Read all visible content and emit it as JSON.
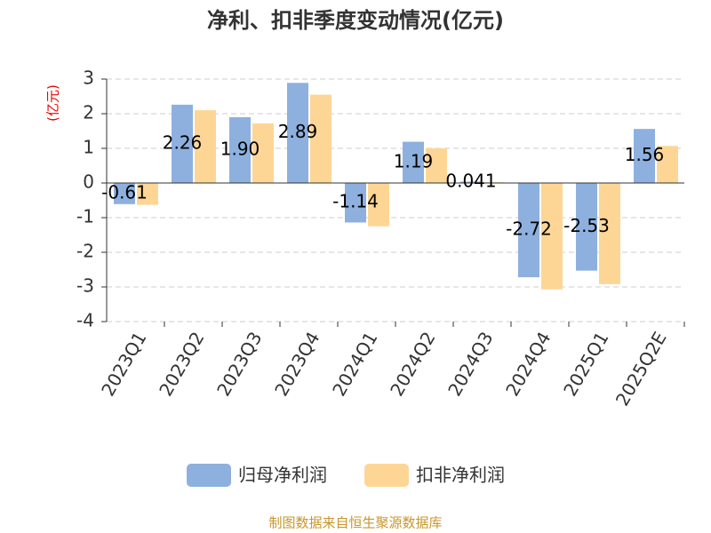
{
  "chart_data": {
    "type": "bar",
    "title": "净利、扣非季度变动情况(亿元)",
    "y_label": "(亿元)",
    "categories": [
      "2023Q1",
      "2023Q2",
      "2023Q3",
      "2023Q4",
      "2024Q1",
      "2024Q2",
      "2024Q3",
      "2024Q4",
      "2025Q1",
      "2025Q2E"
    ],
    "series": [
      {
        "name": "归母净利润",
        "color": "#8eb0de",
        "values": [
          -0.61,
          2.26,
          1.9,
          2.89,
          -1.14,
          1.19,
          0.041,
          -2.72,
          -2.53,
          1.56
        ],
        "value_labels": [
          "-0.61",
          "2.26",
          "1.90",
          "2.89",
          "-1.14",
          "1.19",
          "0.041",
          "-2.72",
          "-2.53",
          "1.56"
        ]
      },
      {
        "name": "扣非净利润",
        "color": "#fdd696",
        "values": [
          -0.63,
          2.1,
          1.72,
          2.55,
          -1.25,
          1.0,
          0.02,
          -3.07,
          -2.92,
          1.07
        ]
      }
    ],
    "ylim": [
      -4,
      3
    ],
    "yticks": [
      -4,
      -3,
      -2,
      -1,
      0,
      1,
      2,
      3
    ],
    "grid": true,
    "source": "制图数据来自恒生聚源数据库"
  }
}
